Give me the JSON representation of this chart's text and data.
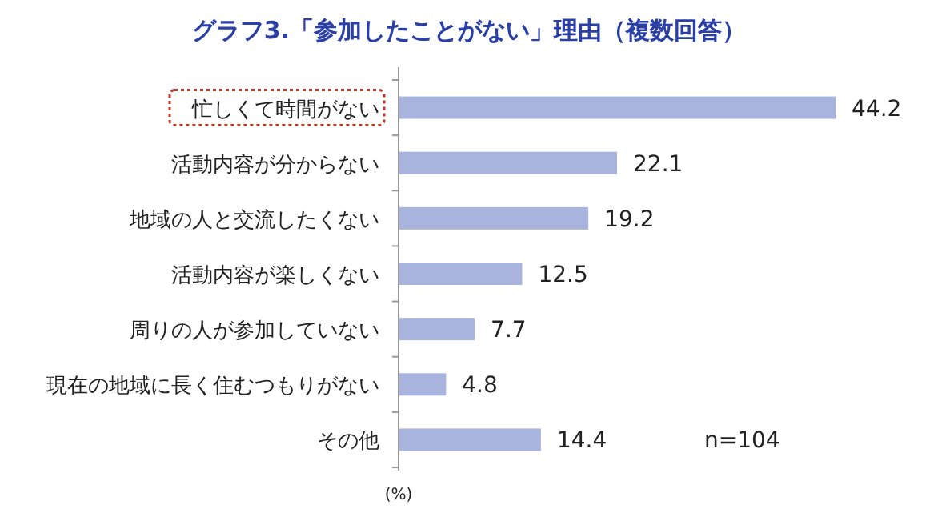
{
  "chart_data": {
    "type": "bar",
    "orientation": "horizontal",
    "title": "グラフ3.「参加したことがない」理由（複数回答）",
    "categories": [
      "忙しくて時間がない",
      "活動内容が分からない",
      "地域の人と交流したくない",
      "活動内容が楽しくない",
      "周りの人が参加していない",
      "現在の地域に長く住むつもりがない",
      "その他"
    ],
    "values": [
      44.2,
      22.1,
      19.2,
      12.5,
      7.7,
      4.8,
      14.4
    ],
    "color": "#a9b4de",
    "data_labels": true,
    "annotations": [
      "n=104",
      "(%)"
    ]
  }
}
